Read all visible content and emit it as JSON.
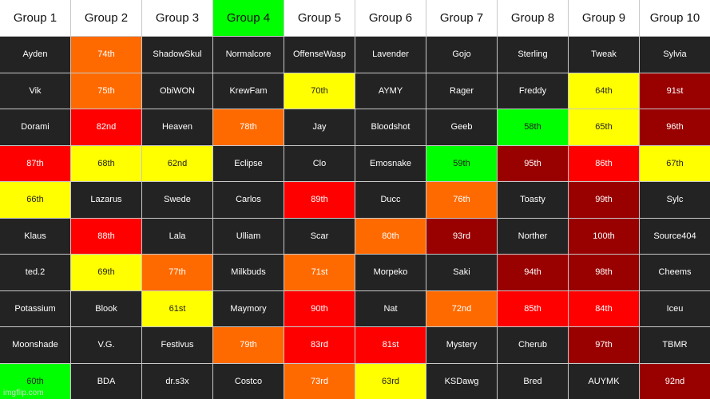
{
  "palette": {
    "default": "#232323",
    "header_bg": "#ffffff",
    "header_green": "#00ff00",
    "orange": "#ff6a00",
    "yellow": "#ffff00",
    "red": "#ff0000",
    "dark_red": "#990000",
    "green": "#00ff00"
  },
  "headers": [
    {
      "label": "Group 1",
      "c": "header_bg"
    },
    {
      "label": "Group 2",
      "c": "header_bg"
    },
    {
      "label": "Group 3",
      "c": "header_bg"
    },
    {
      "label": "Group 4",
      "c": "header_green"
    },
    {
      "label": "Group 5",
      "c": "header_bg"
    },
    {
      "label": "Group 6",
      "c": "header_bg"
    },
    {
      "label": "Group 7",
      "c": "header_bg"
    },
    {
      "label": "Group 8",
      "c": "header_bg"
    },
    {
      "label": "Group 9",
      "c": "header_bg"
    },
    {
      "label": "Group 10",
      "c": "header_bg"
    }
  ],
  "rows": [
    [
      {
        "t": "Ayden",
        "c": "default"
      },
      {
        "t": "74th",
        "c": "orange"
      },
      {
        "t": "ShadowSkul",
        "c": "default"
      },
      {
        "t": "Normalcore",
        "c": "default"
      },
      {
        "t": "OffenseWasp",
        "c": "default"
      },
      {
        "t": "Lavender",
        "c": "default"
      },
      {
        "t": "Gojo",
        "c": "default"
      },
      {
        "t": "Sterling",
        "c": "default"
      },
      {
        "t": "Tweak",
        "c": "default"
      },
      {
        "t": "Sylvia",
        "c": "default"
      }
    ],
    [
      {
        "t": "Vik",
        "c": "default"
      },
      {
        "t": "75th",
        "c": "orange"
      },
      {
        "t": "ObiWON",
        "c": "default"
      },
      {
        "t": "KrewFam",
        "c": "default"
      },
      {
        "t": "70th",
        "c": "yellow"
      },
      {
        "t": "AYMY",
        "c": "default"
      },
      {
        "t": "Rager",
        "c": "default"
      },
      {
        "t": "Freddy",
        "c": "default"
      },
      {
        "t": "64th",
        "c": "yellow"
      },
      {
        "t": "91st",
        "c": "dark_red"
      }
    ],
    [
      {
        "t": "Dorami",
        "c": "default"
      },
      {
        "t": "82nd",
        "c": "red"
      },
      {
        "t": "Heaven",
        "c": "default"
      },
      {
        "t": "78th",
        "c": "orange"
      },
      {
        "t": "Jay",
        "c": "default"
      },
      {
        "t": "Bloodshot",
        "c": "default"
      },
      {
        "t": "Geeb",
        "c": "default"
      },
      {
        "t": "58th",
        "c": "green"
      },
      {
        "t": "65th",
        "c": "yellow"
      },
      {
        "t": "96th",
        "c": "dark_red"
      }
    ],
    [
      {
        "t": "87th",
        "c": "red"
      },
      {
        "t": "68th",
        "c": "yellow"
      },
      {
        "t": "62nd",
        "c": "yellow"
      },
      {
        "t": "Eclipse",
        "c": "default"
      },
      {
        "t": "Clo",
        "c": "default"
      },
      {
        "t": "Emosnake",
        "c": "default"
      },
      {
        "t": "59th",
        "c": "green"
      },
      {
        "t": "95th",
        "c": "dark_red"
      },
      {
        "t": "86th",
        "c": "red"
      },
      {
        "t": "67th",
        "c": "yellow"
      }
    ],
    [
      {
        "t": "66th",
        "c": "yellow"
      },
      {
        "t": "Lazarus",
        "c": "default"
      },
      {
        "t": "Swede",
        "c": "default"
      },
      {
        "t": "Carlos",
        "c": "default"
      },
      {
        "t": "89th",
        "c": "red"
      },
      {
        "t": "Ducc",
        "c": "default"
      },
      {
        "t": "76th",
        "c": "orange"
      },
      {
        "t": "Toasty",
        "c": "default"
      },
      {
        "t": "99th",
        "c": "dark_red"
      },
      {
        "t": "Sylc",
        "c": "default"
      }
    ],
    [
      {
        "t": "Klaus",
        "c": "default"
      },
      {
        "t": "88th",
        "c": "red"
      },
      {
        "t": "Lala",
        "c": "default"
      },
      {
        "t": "Ulliam",
        "c": "default"
      },
      {
        "t": "Scar",
        "c": "default"
      },
      {
        "t": "80th",
        "c": "orange"
      },
      {
        "t": "93rd",
        "c": "dark_red"
      },
      {
        "t": "Norther",
        "c": "default"
      },
      {
        "t": "100th",
        "c": "dark_red"
      },
      {
        "t": "Source404",
        "c": "default"
      }
    ],
    [
      {
        "t": "ted.2",
        "c": "default"
      },
      {
        "t": "69th",
        "c": "yellow"
      },
      {
        "t": "77th",
        "c": "orange"
      },
      {
        "t": "Milkbuds",
        "c": "default"
      },
      {
        "t": "71st",
        "c": "orange"
      },
      {
        "t": "Morpeko",
        "c": "default"
      },
      {
        "t": "Saki",
        "c": "default"
      },
      {
        "t": "94th",
        "c": "dark_red"
      },
      {
        "t": "98th",
        "c": "dark_red"
      },
      {
        "t": "Cheems",
        "c": "default"
      }
    ],
    [
      {
        "t": "Potassium",
        "c": "default"
      },
      {
        "t": "Blook",
        "c": "default"
      },
      {
        "t": "61st",
        "c": "yellow"
      },
      {
        "t": "Maymory",
        "c": "default"
      },
      {
        "t": "90th",
        "c": "red"
      },
      {
        "t": "Nat",
        "c": "default"
      },
      {
        "t": "72nd",
        "c": "orange"
      },
      {
        "t": "85th",
        "c": "red"
      },
      {
        "t": "84th",
        "c": "red"
      },
      {
        "t": "Iceu",
        "c": "default"
      }
    ],
    [
      {
        "t": "Moonshade",
        "c": "default"
      },
      {
        "t": "V.G.",
        "c": "default"
      },
      {
        "t": "Festivus",
        "c": "default"
      },
      {
        "t": "79th",
        "c": "orange"
      },
      {
        "t": "83rd",
        "c": "red"
      },
      {
        "t": "81st",
        "c": "red"
      },
      {
        "t": "Mystery",
        "c": "default"
      },
      {
        "t": "Cherub",
        "c": "default"
      },
      {
        "t": "97th",
        "c": "dark_red"
      },
      {
        "t": "TBMR",
        "c": "default"
      }
    ],
    [
      {
        "t": "60th",
        "c": "green"
      },
      {
        "t": "BDA",
        "c": "default"
      },
      {
        "t": "dr.s3x",
        "c": "default"
      },
      {
        "t": "Costco",
        "c": "default"
      },
      {
        "t": "73rd",
        "c": "orange"
      },
      {
        "t": "63rd",
        "c": "yellow"
      },
      {
        "t": "KSDawg",
        "c": "default"
      },
      {
        "t": "Bred",
        "c": "default"
      },
      {
        "t": "AUYMK",
        "c": "default"
      },
      {
        "t": "92nd",
        "c": "dark_red"
      }
    ]
  ],
  "watermark": "imgflip.com"
}
